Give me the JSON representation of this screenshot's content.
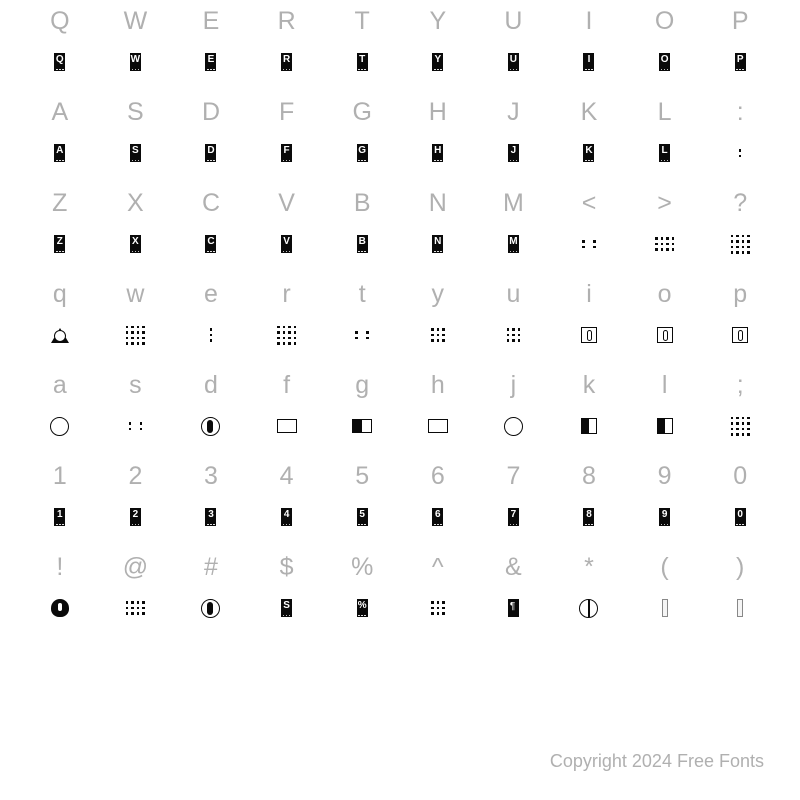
{
  "copyright": "Copyright 2024 Free Fonts",
  "rows": [
    {
      "keys": [
        "Q",
        "W",
        "E",
        "R",
        "T",
        "Y",
        "U",
        "I",
        "O",
        "P"
      ],
      "glyphs": [
        "box:Q",
        "box:W",
        "box:E",
        "box:R",
        "box:T",
        "box:Y",
        "box:U",
        "box:I",
        "box:O",
        "box:P"
      ]
    },
    {
      "keys": [
        "A",
        "S",
        "D",
        "F",
        "G",
        "H",
        "J",
        "K",
        "L",
        ":"
      ],
      "glyphs": [
        "box:A",
        "box:S",
        "box:D",
        "box:F",
        "box:G",
        "box:H",
        "box:J",
        "box:K",
        "box:L",
        "dots:2x1"
      ]
    },
    {
      "keys": [
        "Z",
        "X",
        "C",
        "V",
        "B",
        "N",
        "M",
        "<",
        ">",
        "?"
      ],
      "glyphs": [
        "box:Z",
        "box:X",
        "box:C",
        "box:V",
        "box:B",
        "box:N",
        "box:M",
        "dots:2x3",
        "dots:3x4",
        "dots:4x4"
      ]
    },
    {
      "keys": [
        "q",
        "w",
        "e",
        "r",
        "t",
        "y",
        "u",
        "i",
        "o",
        "p"
      ],
      "glyphs": [
        "tri",
        "dots:4x4",
        "dots:1x3",
        "dots:4x4",
        "dots:2x3",
        "dots:3x3",
        "dots:3x3b",
        "sq",
        "sq",
        "sq"
      ]
    },
    {
      "keys": [
        "a",
        "s",
        "d",
        "f",
        "g",
        "h",
        "j",
        "k",
        "l",
        ";"
      ],
      "glyphs": [
        "circle",
        "dots:2x3",
        "circlef",
        "rect",
        "rectf",
        "rect",
        "circle",
        "sqf",
        "sqf",
        "dots:4x4"
      ]
    },
    {
      "keys": [
        "1",
        "2",
        "3",
        "4",
        "5",
        "6",
        "7",
        "8",
        "9",
        "0"
      ],
      "glyphs": [
        "box:1",
        "box:2",
        "box:3",
        "box:4",
        "box:5",
        "box:6",
        "box:7",
        "box:8",
        "box:9",
        "box:0"
      ]
    },
    {
      "keys": [
        "!",
        "@",
        "#",
        "$",
        "%",
        "^",
        "&",
        "*",
        "(",
        ")"
      ],
      "glyphs": [
        "orn1",
        "dots:3x4",
        "circlef",
        "box:S",
        "box:%",
        "dots:3x3",
        "boxsym",
        "circlev",
        "thin",
        "thin"
      ]
    }
  ],
  "colors": {
    "key_text": "#b0b0b0",
    "glyph_fill": "#0a0a0a",
    "background": "#ffffff"
  }
}
